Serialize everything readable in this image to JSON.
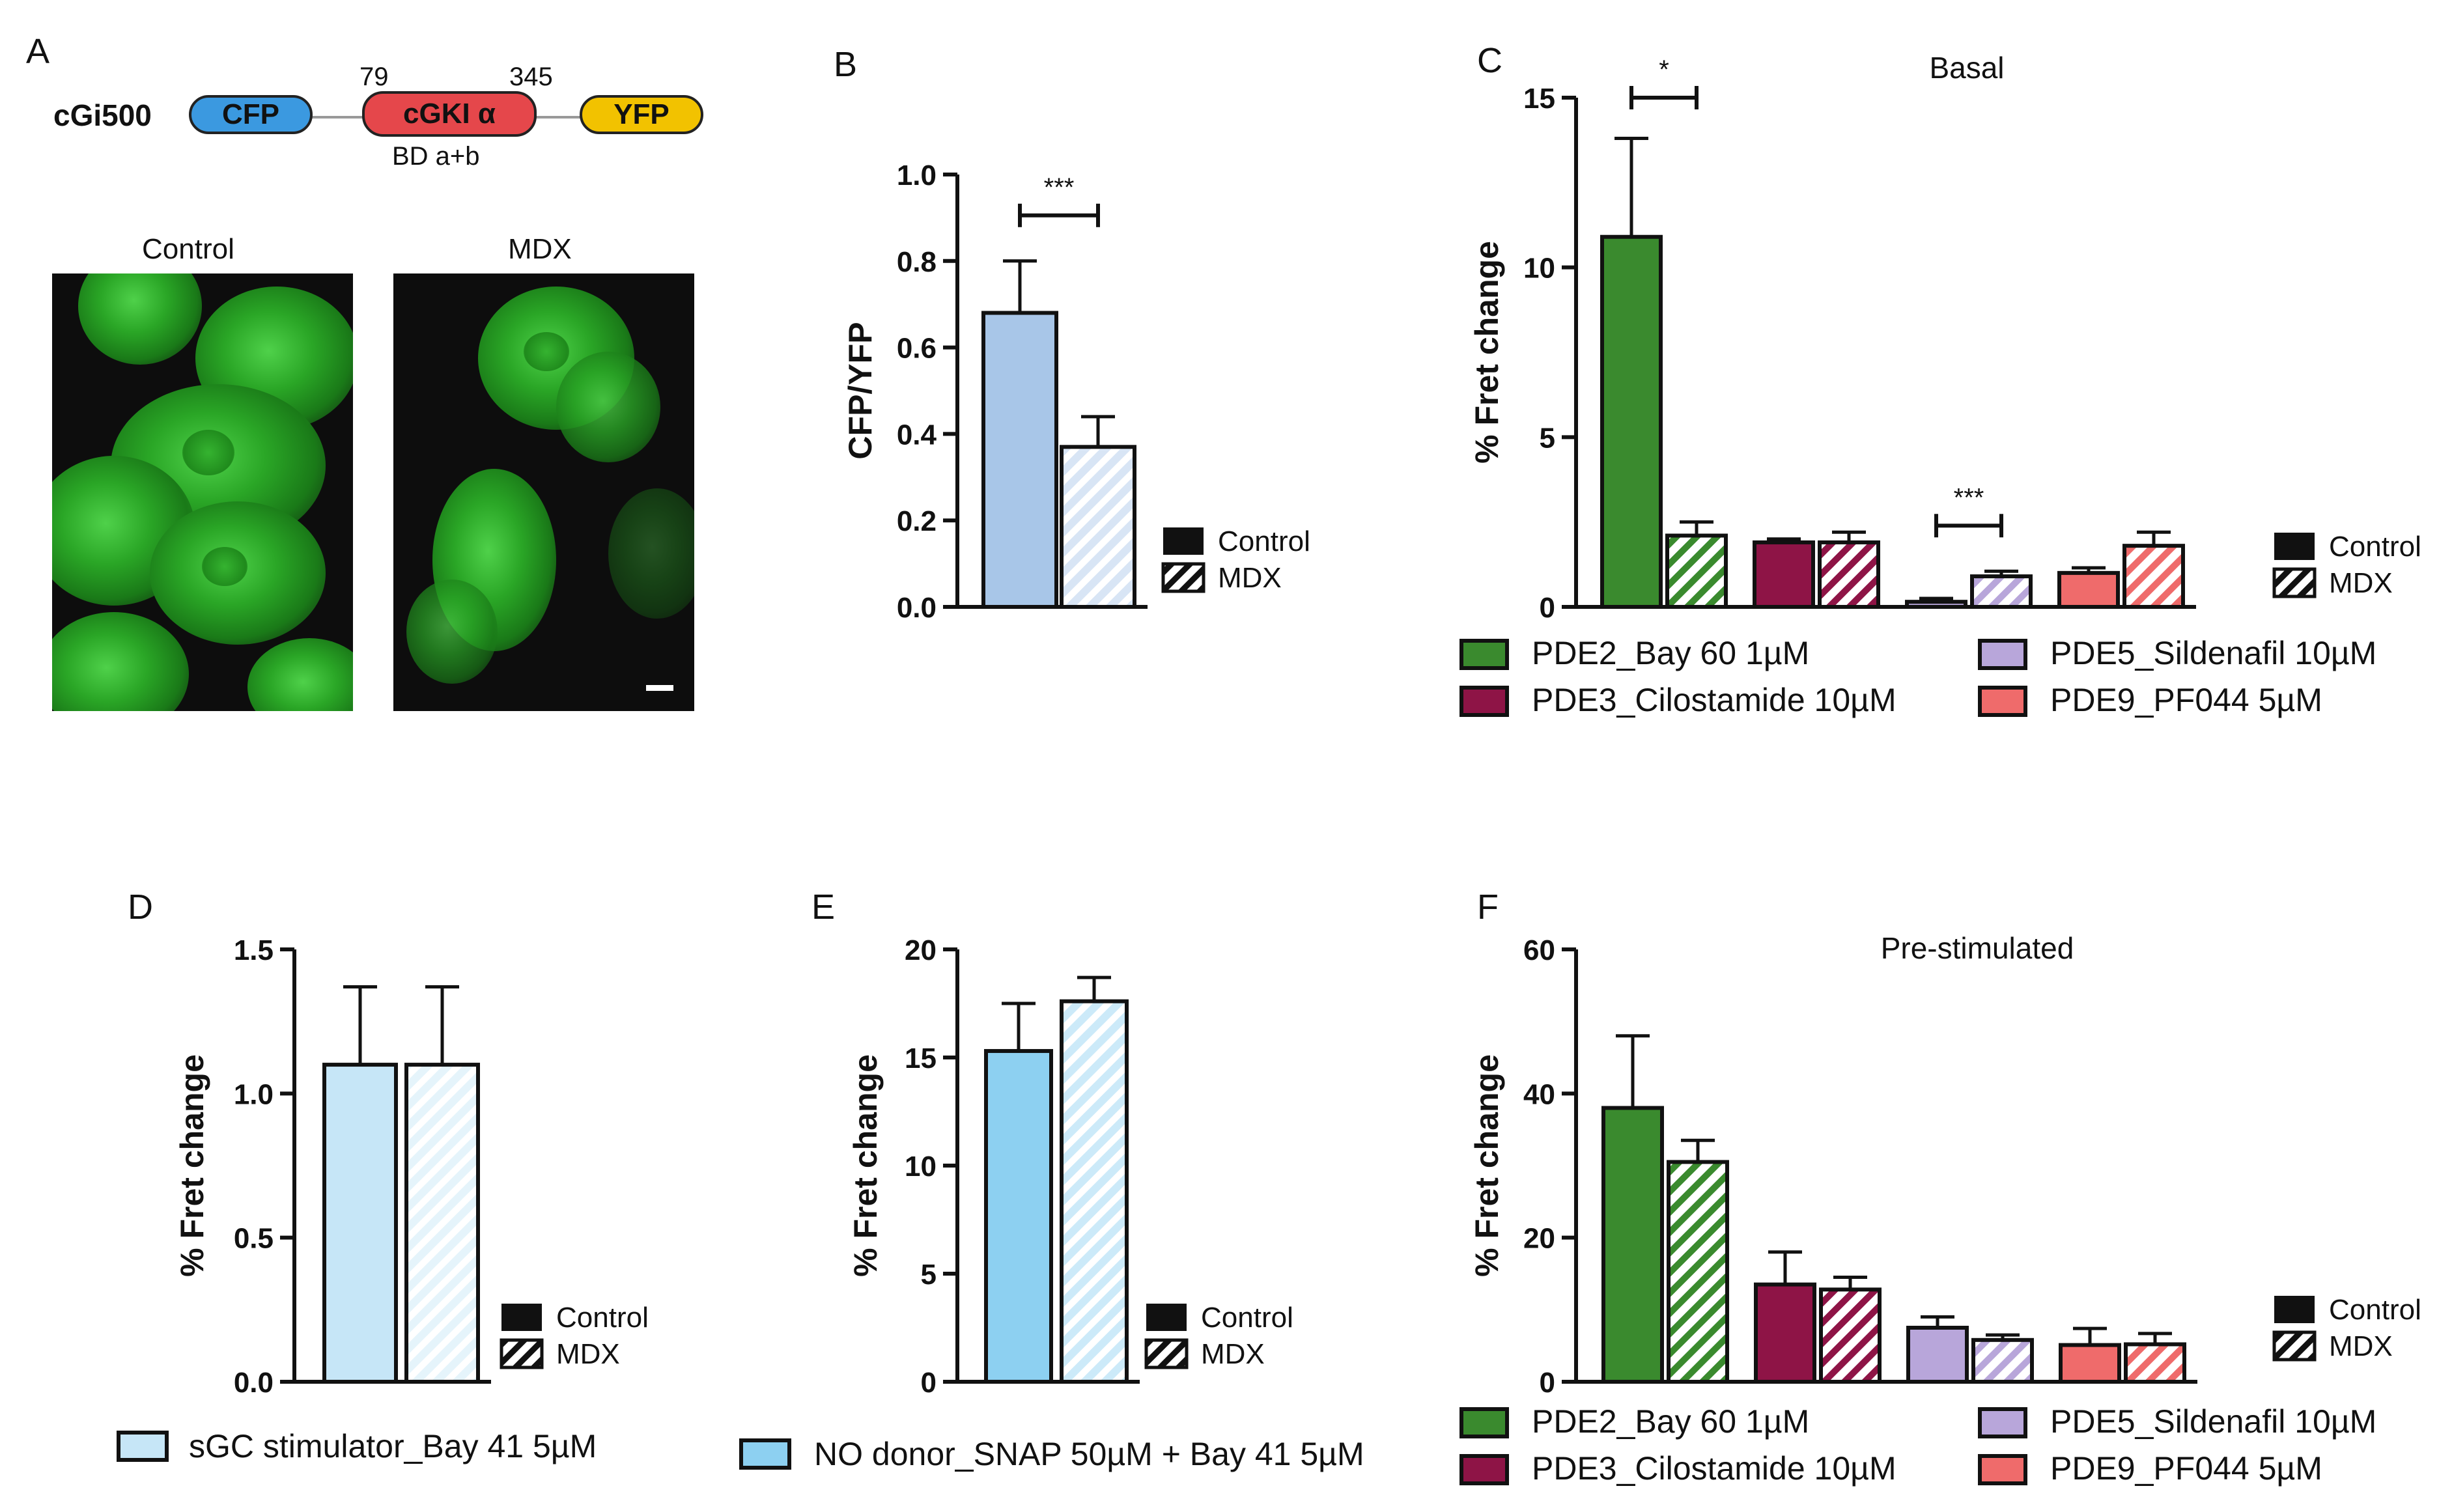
{
  "panel_labels": [
    "A",
    "B",
    "C",
    "D",
    "E",
    "F"
  ],
  "construct": {
    "name": "cGi500",
    "domains": [
      "CFP",
      "cGKI α",
      "YFP"
    ],
    "colors": [
      "#3b99e0",
      "#e5474b",
      "#f2c200"
    ],
    "start": "79",
    "end": "345",
    "sublabel": "BD a+b"
  },
  "micrographs": [
    {
      "title": "Control"
    },
    {
      "title": "MDX"
    }
  ],
  "legend_pair": {
    "control": "Control",
    "mdx": "MDX"
  },
  "pde_legend": [
    {
      "label": "PDE2_Bay 60 1µM",
      "color": "#3a8a2e"
    },
    {
      "label": "PDE3_Cilostamide 10µM",
      "color": "#8e1446"
    },
    {
      "label": "PDE5_Sildenafil 10µM",
      "color": "#b8a6da"
    },
    {
      "label": "PDE9_PF044 5µM",
      "color": "#ef6b6b"
    }
  ],
  "chart_data": [
    {
      "panel": "B",
      "type": "bar",
      "title": "",
      "ylabel": "CFP/YFP",
      "ylim": [
        0,
        1.0
      ],
      "yticks": [
        "0.0",
        "0.2",
        "0.4",
        "0.6",
        "0.8",
        "1.0"
      ],
      "groups": [
        {
          "name": "",
          "color": "#a8c6e8",
          "control": 0.68,
          "control_err": 0.12,
          "mdx": 0.37,
          "mdx_err": 0.07
        }
      ],
      "significance": [
        {
          "group": 0,
          "text": "***"
        }
      ]
    },
    {
      "panel": "C",
      "type": "bar",
      "title": "Basal",
      "ylabel": "% Fret change",
      "ylim": [
        0,
        15
      ],
      "yticks": [
        "0",
        "5",
        "10",
        "15"
      ],
      "groups": [
        {
          "name": "PDE2_Bay 60 1µM",
          "color": "#3a8a2e",
          "control": 10.9,
          "control_err": 2.9,
          "mdx": 2.1,
          "mdx_err": 0.4
        },
        {
          "name": "PDE3_Cilostamide 10µM",
          "color": "#8e1446",
          "control": 1.9,
          "control_err": 0.1,
          "mdx": 1.9,
          "mdx_err": 0.3
        },
        {
          "name": "PDE5_Sildenafil 10µM",
          "color": "#b8a6da",
          "control": 0.15,
          "control_err": 0.1,
          "mdx": 0.9,
          "mdx_err": 0.15
        },
        {
          "name": "PDE9_PF044 5µM",
          "color": "#ef6b6b",
          "control": 1.0,
          "control_err": 0.15,
          "mdx": 1.8,
          "mdx_err": 0.4
        }
      ],
      "significance": [
        {
          "group": 0,
          "text": "*"
        },
        {
          "group": 2,
          "text": "***"
        }
      ]
    },
    {
      "panel": "D",
      "type": "bar",
      "title": "",
      "ylabel": "% Fret change",
      "ylim": [
        0,
        1.5
      ],
      "yticks": [
        "0.0",
        "0.5",
        "1.0",
        "1.5"
      ],
      "groups": [
        {
          "name": "sGC stimulator_Bay 41 5µM",
          "color": "#c6e6f7",
          "control": 1.1,
          "control_err": 0.27,
          "mdx": 1.1,
          "mdx_err": 0.27
        }
      ],
      "significance": []
    },
    {
      "panel": "E",
      "type": "bar",
      "title": "",
      "ylabel": "% Fret change",
      "ylim": [
        0,
        20
      ],
      "yticks": [
        "0",
        "5",
        "10",
        "15",
        "20"
      ],
      "groups": [
        {
          "name": "NO donor_SNAP 50µM + Bay 41 5µM",
          "color": "#8dd0f1",
          "control": 15.3,
          "control_err": 2.2,
          "mdx": 17.6,
          "mdx_err": 1.1
        }
      ],
      "significance": []
    },
    {
      "panel": "F",
      "type": "bar",
      "title": "Pre-stimulated",
      "ylabel": "% Fret change",
      "ylim": [
        0,
        60
      ],
      "yticks": [
        "0",
        "20",
        "40",
        "60"
      ],
      "groups": [
        {
          "name": "PDE2_Bay 60 1µM",
          "color": "#3a8a2e",
          "control": 38,
          "control_err": 10,
          "mdx": 30.5,
          "mdx_err": 3
        },
        {
          "name": "PDE3_Cilostamide 10µM",
          "color": "#8e1446",
          "control": 13.5,
          "control_err": 4.5,
          "mdx": 12.8,
          "mdx_err": 1.7
        },
        {
          "name": "PDE5_Sildenafil 10µM",
          "color": "#b8a6da",
          "control": 7.5,
          "control_err": 1.5,
          "mdx": 5.8,
          "mdx_err": 0.7
        },
        {
          "name": "PDE9_PF044 5µM",
          "color": "#ef6b6b",
          "control": 5.1,
          "control_err": 2.3,
          "mdx": 5.2,
          "mdx_err": 1.5
        }
      ],
      "significance": []
    }
  ]
}
